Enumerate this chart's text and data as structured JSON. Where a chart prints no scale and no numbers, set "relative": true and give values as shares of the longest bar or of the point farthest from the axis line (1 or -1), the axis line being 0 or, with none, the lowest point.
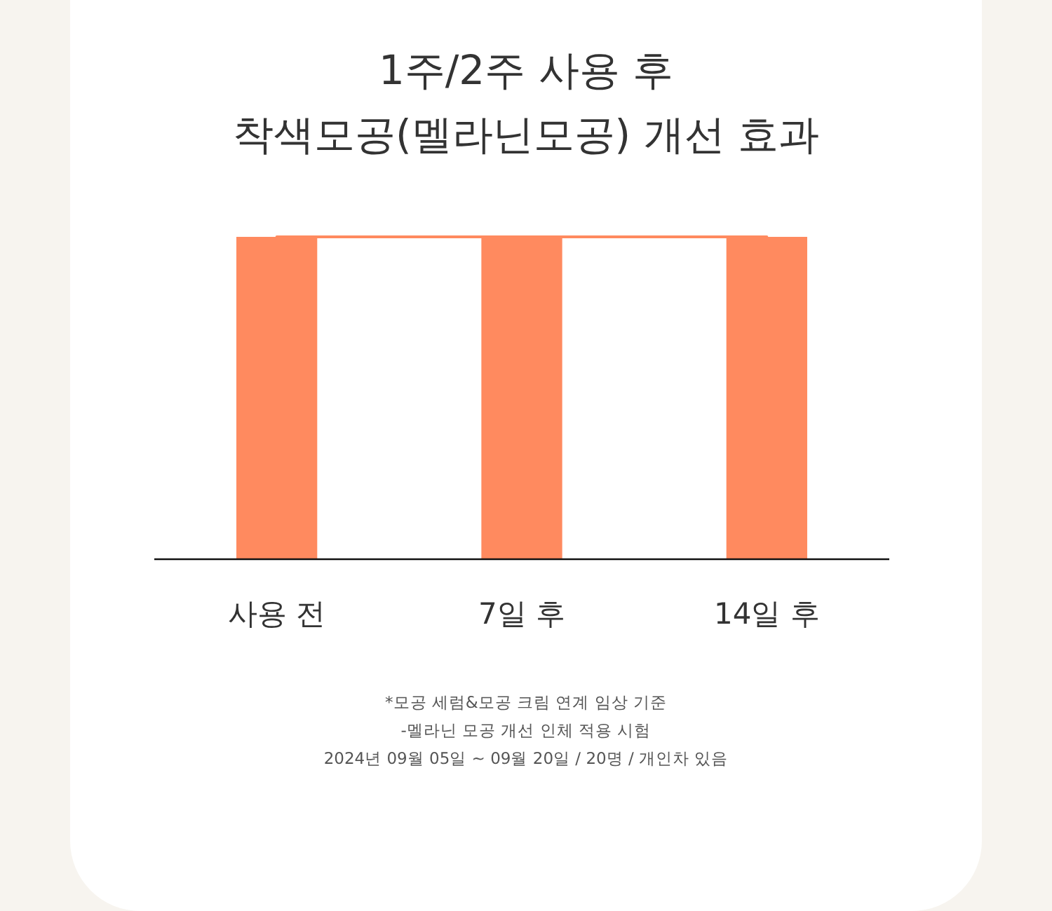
{
  "chart_data": {
    "type": "bar",
    "title": "1주/2주 사용 후\n착색모공(멜라닌모공) 개선 효과",
    "categories": [
      "사용 전",
      "7일 후",
      "14일 후"
    ],
    "relative": true,
    "series": [
      {
        "color": "#ff8a5f",
        "values": [
          1,
          1,
          1
        ]
      },
      {
        "type": "line",
        "color": "#ff8a5f",
        "values": [
          1,
          1,
          1
        ]
      }
    ],
    "annotations": [
      "*모공 세럼&모공 크림 연계 임상 기준",
      "-멜라닌 모공 개선 인체 적용 시험",
      "2024년 09월 05일 ~ 09월 20일 / 20명 / 개인차 있음"
    ]
  }
}
